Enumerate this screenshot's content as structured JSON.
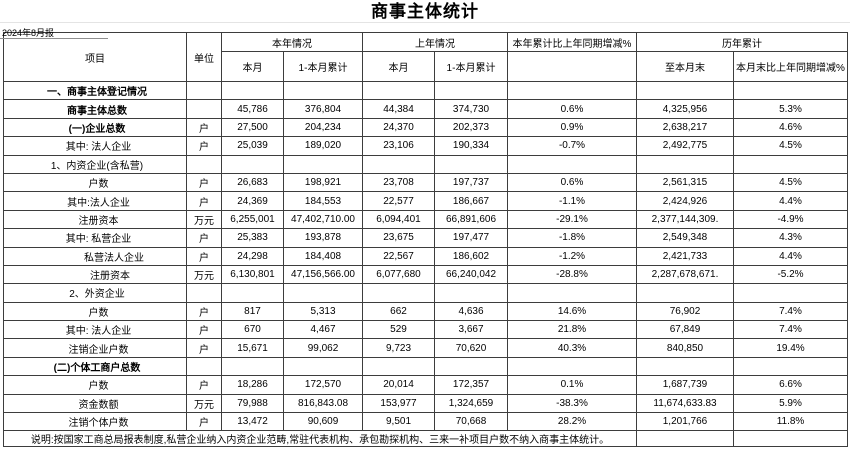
{
  "title": "商事主体统计",
  "date_label": "2024年8月报",
  "table": {
    "header": {
      "item": "项目",
      "unit": "单位",
      "this_year": "本年情况",
      "last_year": "上年情况",
      "ytd_vs_last_pct": "本年累计比上年同期增减%",
      "historical": "历年累计",
      "this_month": "本月",
      "cum": "1-本月累计",
      "to_month_end": "至本月末",
      "month_end_vs_last_pct": "本月末比上年同期增减%"
    },
    "rows": [
      {
        "item": "一、商事主体登记情况",
        "bold": true,
        "indent": 4,
        "unit": "",
        "c": [
          "",
          "",
          "",
          "",
          "",
          "",
          ""
        ]
      },
      {
        "item": "商事主体总数",
        "bold": true,
        "indent": 4,
        "unit": "",
        "c": [
          "45,786",
          "376,804",
          "44,384",
          "374,730",
          "0.6%",
          "4,325,956",
          "5.3%"
        ]
      },
      {
        "item": "(一)企业总数",
        "bold": true,
        "indent": 4,
        "unit": "户",
        "c": [
          "27,500",
          "204,234",
          "24,370",
          "202,373",
          "0.9%",
          "2,638,217",
          "4.6%"
        ]
      },
      {
        "item": "其中: 法人企业",
        "bold": false,
        "indent": 7,
        "unit": "户",
        "c": [
          "25,039",
          "189,020",
          "23,106",
          "190,334",
          "-0.7%",
          "2,492,775",
          "4.5%"
        ]
      },
      {
        "item": "1、内资企业(含私营)",
        "bold": false,
        "indent": 4,
        "unit": "",
        "c": [
          "",
          "",
          "",
          "",
          "",
          "",
          ""
        ]
      },
      {
        "item": "户数",
        "bold": false,
        "indent": 7,
        "unit": "户",
        "c": [
          "26,683",
          "198,921",
          "23,708",
          "197,737",
          "0.6%",
          "2,561,315",
          "4.5%"
        ]
      },
      {
        "item": "其中:法人企业",
        "bold": false,
        "indent": 7,
        "unit": "户",
        "c": [
          "24,369",
          "184,553",
          "22,577",
          "186,667",
          "-1.1%",
          "2,424,926",
          "4.4%"
        ]
      },
      {
        "item": "注册资本",
        "bold": false,
        "indent": 7,
        "unit": "万元",
        "c": [
          "6,255,001",
          "47,402,710.00",
          "6,094,401",
          "66,891,606",
          "-29.1%",
          "2,377,144,309.",
          "-4.9%"
        ]
      },
      {
        "item": "其中: 私营企业",
        "bold": false,
        "indent": 7,
        "unit": "户",
        "c": [
          "25,383",
          "193,878",
          "23,675",
          "197,477",
          "-1.8%",
          "2,549,348",
          "4.3%"
        ]
      },
      {
        "item": "私营法人企业",
        "bold": false,
        "indent": 38,
        "unit": "户",
        "c": [
          "24,298",
          "184,408",
          "22,567",
          "186,602",
          "-1.2%",
          "2,421,733",
          "4.4%"
        ]
      },
      {
        "item": "注册资本",
        "bold": false,
        "indent": 30,
        "unit": "万元",
        "c": [
          "6,130,801",
          "47,156,566.00",
          "6,077,680",
          "66,240,042",
          "-28.8%",
          "2,287,678,671.",
          "-5.2%"
        ]
      },
      {
        "item": "2、外资企业",
        "bold": false,
        "indent": 4,
        "unit": "",
        "c": [
          "",
          "",
          "",
          "",
          "",
          "",
          ""
        ]
      },
      {
        "item": "户数",
        "bold": false,
        "indent": 7,
        "unit": "户",
        "c": [
          "817",
          "5,313",
          "662",
          "4,636",
          "14.6%",
          "76,902",
          "7.4%"
        ]
      },
      {
        "item": "其中: 法人企业",
        "bold": false,
        "indent": 7,
        "unit": "户",
        "c": [
          "670",
          "4,467",
          "529",
          "3,667",
          "21.8%",
          "67,849",
          "7.4%"
        ]
      },
      {
        "item": "注销企业户数",
        "bold": false,
        "indent": 7,
        "unit": "户",
        "c": [
          "15,671",
          "99,062",
          "9,723",
          "70,620",
          "40.3%",
          "840,850",
          "19.4%"
        ]
      },
      {
        "item": "(二)个体工商户总数",
        "bold": true,
        "indent": 4,
        "unit": "",
        "c": [
          "",
          "",
          "",
          "",
          "",
          "",
          ""
        ]
      },
      {
        "item": "户数",
        "bold": false,
        "indent": 7,
        "unit": "户",
        "c": [
          "18,286",
          "172,570",
          "20,014",
          "172,357",
          "0.1%",
          "1,687,739",
          "6.6%"
        ]
      },
      {
        "item": "资金数额",
        "bold": false,
        "indent": 7,
        "unit": "万元",
        "c": [
          "79,988",
          "816,843.08",
          "153,977",
          "1,324,659",
          "-38.3%",
          "11,674,633.83",
          "5.9%"
        ]
      },
      {
        "item": "注销个体户数",
        "bold": false,
        "indent": 7,
        "unit": "户",
        "c": [
          "13,472",
          "90,609",
          "9,501",
          "70,668",
          "28.2%",
          "1,201,766",
          "11.8%"
        ]
      }
    ]
  },
  "note": "说明:按国家工商总局报表制度,私营企业纳入内资企业范畴,常驻代表机构、承包勘探机构、三来一补项目户数不纳入商事主体统计。"
}
